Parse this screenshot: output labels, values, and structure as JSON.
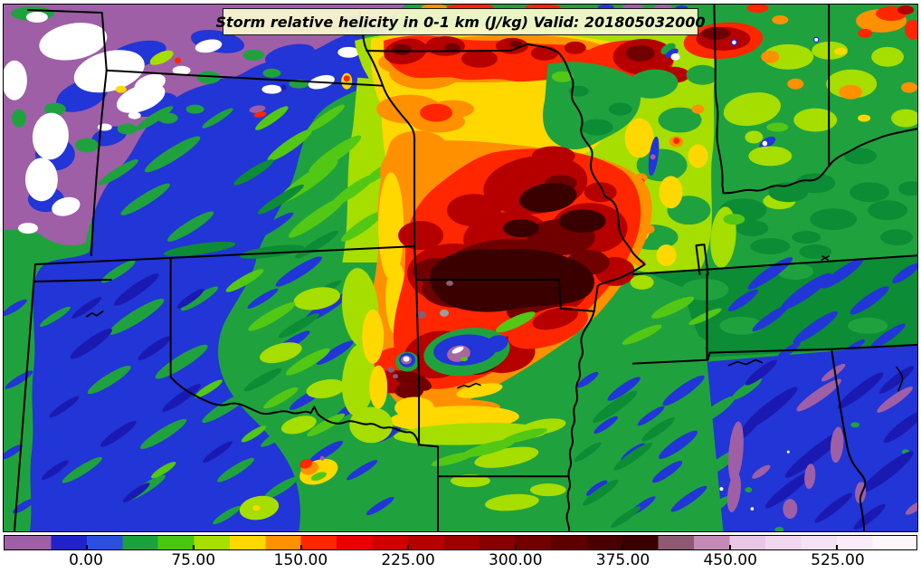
{
  "title": {
    "text": "Storm relative helicity in 0-1 km (J/kg) Valid: 201805032000"
  },
  "chart_data": {
    "type": "filled_contour_map",
    "title": "Storm relative helicity in 0-1 km (J/kg) Valid: 201805032000",
    "variable": "Storm relative helicity in 0-1 km",
    "units": "J/kg",
    "valid": "201805032000",
    "region": "Central/Southern United States (NE, IA, KS, MO, IL, IN, OH, KY, TN, OK, AR, MS, AL, LA, TX visible)",
    "colorbar": {
      "orientation": "horizontal",
      "tick_labels": [
        "0.00",
        "75.00",
        "150.00",
        "225.00",
        "300.00",
        "375.00",
        "450.00",
        "525.00"
      ],
      "tick_values": [
        0,
        75,
        150,
        225,
        300,
        375,
        450,
        525
      ],
      "contour_interval": 25,
      "levels": [
        -50,
        -25,
        0,
        25,
        50,
        75,
        100,
        125,
        150,
        175,
        200,
        225,
        250,
        275,
        300,
        325,
        350,
        375,
        400,
        425,
        450,
        475,
        500,
        525,
        550,
        575
      ],
      "colors": [
        "#9e5fa7",
        "#2222cc",
        "#2b50e0",
        "#1aa23c",
        "#46c812",
        "#a6de00",
        "#ffd800",
        "#ff9000",
        "#ff2600",
        "#ea0000",
        "#d00000",
        "#b60000",
        "#9c0000",
        "#850000",
        "#700000",
        "#5c0000",
        "#4a0000",
        "#3a0000",
        "#8e5a72",
        "#c48ab6",
        "#eac6e6",
        "#f1d6ef",
        "#f6e2f5",
        "#f9ecf8",
        "#fdf7fc"
      ]
    },
    "features_approx": [
      {
        "area": "central/southern Missouri into northern Arkansas",
        "reading": "broad maximum ~250-400+ J/kg (dark red / near-black core)"
      },
      {
        "area": "southern Iowa / northern Missouri band",
        "reading": "~150-250 J/kg (red band with dark cores)"
      },
      {
        "area": "western Kansas, western Oklahoma, Texas",
        "reading": "~-25 to +25 J/kg (blue) with green streaks"
      },
      {
        "area": "Nebraska / northwest corner",
        "reading": "below -25 J/kg (purple) with off-scale white pockets"
      },
      {
        "area": "Mississippi / Alabama",
        "reading": "~-25 to +25 J/kg (blue) with purple streaks below -25"
      },
      {
        "area": "storm-scale pockets near MO/AR/OK border",
        "reading": "local extremes > 450 J/kg (pink/white dots) adjacent to strong negatives"
      }
    ]
  }
}
